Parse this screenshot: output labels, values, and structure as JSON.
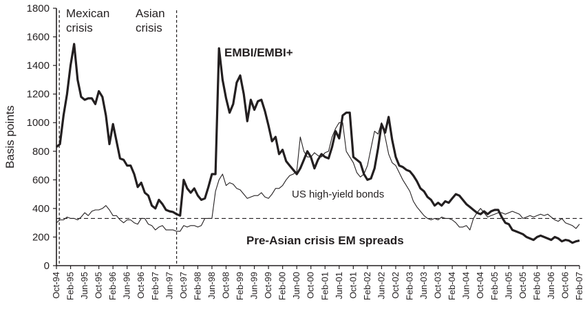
{
  "chart_data": {
    "type": "line",
    "title": "",
    "xlabel": "",
    "ylabel": "Basis points",
    "ylim": [
      0,
      1800
    ],
    "yticks": [
      0,
      200,
      400,
      600,
      800,
      1000,
      1200,
      1400,
      1600,
      1800
    ],
    "grid": false,
    "legend": "inline annotations",
    "x_start": "Oct-94",
    "x_end": "Feb-07",
    "x_tick_interval_months": 4,
    "x_ticks": [
      "Oct-94",
      "Feb-95",
      "Jun-95",
      "Oct-95",
      "Feb-96",
      "Jun-96",
      "Oct-96",
      "Feb-97",
      "Jun-97",
      "Oct-97",
      "Feb-98",
      "Jun-98",
      "Oct-98",
      "Feb-99",
      "Jun-99",
      "Oct-99",
      "Feb-00",
      "Jun-00",
      "Oct-00",
      "Feb-01",
      "Jun-01",
      "Oct-01",
      "Feb-02",
      "Jun-02",
      "Oct-02",
      "Feb-03",
      "Jun-03",
      "Oct-03",
      "Feb-04",
      "Jun-04",
      "Oct-04",
      "Feb-05",
      "Jun-05",
      "Oct-05",
      "Feb-06",
      "Jun-06",
      "Oct-06",
      "Feb-07"
    ],
    "series": [
      {
        "name": "EMBI/EMBI+",
        "style": "thick",
        "color": "#231f20",
        "month_offsets": [
          0,
          1,
          2,
          3,
          4,
          5,
          6,
          7,
          8,
          9,
          10,
          11,
          12,
          13,
          14,
          15,
          16,
          17,
          18,
          19,
          20,
          21,
          22,
          23,
          24,
          25,
          26,
          27,
          28,
          29,
          30,
          31,
          32,
          33,
          34,
          35,
          36,
          37,
          38,
          39,
          40,
          41,
          42,
          43,
          44,
          45,
          46,
          47,
          48,
          49,
          50,
          51,
          52,
          53,
          54,
          55,
          56,
          57,
          58,
          59,
          60,
          61,
          62,
          63,
          64,
          65,
          66,
          67,
          68,
          69,
          70,
          71,
          72,
          73,
          74,
          75,
          76,
          77,
          78,
          79,
          80,
          81,
          82,
          83,
          84,
          85,
          86,
          87,
          88,
          89,
          90,
          91,
          92,
          93,
          94,
          95,
          96,
          97,
          98,
          99,
          100,
          101,
          102,
          103,
          104,
          105,
          106,
          107,
          108,
          109,
          110,
          111,
          112,
          113,
          114,
          115,
          116,
          117,
          118,
          119,
          120,
          121,
          122,
          123,
          124,
          125,
          126,
          127,
          128,
          129,
          130,
          131,
          132,
          133,
          134,
          135,
          136,
          137,
          138,
          139,
          140,
          141,
          142,
          143,
          144,
          145,
          146,
          147,
          148
        ],
        "values": [
          830,
          850,
          1050,
          1200,
          1400,
          1550,
          1300,
          1180,
          1160,
          1170,
          1170,
          1130,
          1220,
          1180,
          1050,
          850,
          990,
          870,
          750,
          740,
          700,
          700,
          640,
          550,
          580,
          510,
          490,
          420,
          400,
          460,
          430,
          390,
          380,
          375,
          360,
          350,
          600,
          540,
          510,
          540,
          490,
          460,
          470,
          550,
          640,
          640,
          1520,
          1300,
          1170,
          1070,
          1130,
          1280,
          1330,
          1200,
          1010,
          1160,
          1090,
          1150,
          1160,
          1080,
          980,
          870,
          900,
          780,
          810,
          730,
          700,
          670,
          640,
          680,
          740,
          800,
          760,
          680,
          740,
          780,
          760,
          750,
          830,
          940,
          890,
          1050,
          1070,
          1070,
          760,
          740,
          720,
          640,
          600,
          610,
          680,
          820,
          990,
          930,
          1040,
          880,
          760,
          700,
          690,
          670,
          660,
          630,
          590,
          540,
          520,
          480,
          460,
          420,
          440,
          420,
          450,
          440,
          470,
          500,
          490,
          460,
          430,
          410,
          390,
          370,
          360,
          380,
          360,
          380,
          390,
          390,
          340,
          300,
          290,
          250,
          240,
          230,
          220,
          200,
          190,
          180,
          200,
          210,
          200,
          190,
          180,
          200,
          190,
          170,
          180,
          175,
          160,
          170,
          175,
          170,
          190
        ]
      },
      {
        "name": "US high-yield bonds",
        "style": "thin",
        "color": "#231f20",
        "month_offsets": [
          0,
          1,
          2,
          3,
          4,
          5,
          6,
          7,
          8,
          9,
          10,
          11,
          12,
          13,
          14,
          15,
          16,
          17,
          18,
          19,
          20,
          21,
          22,
          23,
          24,
          25,
          26,
          27,
          28,
          29,
          30,
          31,
          32,
          33,
          34,
          35,
          36,
          37,
          38,
          39,
          40,
          41,
          42,
          43,
          44,
          45,
          46,
          47,
          48,
          49,
          50,
          51,
          52,
          53,
          54,
          55,
          56,
          57,
          58,
          59,
          60,
          61,
          62,
          63,
          64,
          65,
          66,
          67,
          68,
          69,
          70,
          71,
          72,
          73,
          74,
          75,
          76,
          77,
          78,
          79,
          80,
          81,
          82,
          83,
          84,
          85,
          86,
          87,
          88,
          89,
          90,
          91,
          92,
          93,
          94,
          95,
          96,
          97,
          98,
          99,
          100,
          101,
          102,
          103,
          104,
          105,
          106,
          107,
          108,
          109,
          110,
          111,
          112,
          113,
          114,
          115,
          116,
          117,
          118,
          119,
          120,
          121,
          122,
          123,
          124,
          125,
          126,
          127,
          128,
          129,
          130,
          131,
          132,
          133,
          134,
          135,
          136,
          137,
          138,
          139,
          140,
          141,
          142,
          143,
          144,
          145,
          146,
          147,
          148
        ],
        "values": [
          300,
          320,
          320,
          340,
          330,
          330,
          320,
          340,
          370,
          350,
          380,
          390,
          390,
          400,
          420,
          390,
          350,
          350,
          320,
          300,
          320,
          320,
          300,
          290,
          330,
          330,
          290,
          280,
          250,
          270,
          280,
          250,
          250,
          250,
          240,
          240,
          280,
          270,
          280,
          280,
          270,
          280,
          330,
          330,
          330,
          520,
          600,
          640,
          560,
          580,
          570,
          540,
          530,
          500,
          470,
          480,
          490,
          490,
          510,
          480,
          470,
          500,
          540,
          540,
          560,
          600,
          630,
          640,
          660,
          900,
          800,
          760,
          760,
          790,
          770,
          760,
          790,
          800,
          900,
          960,
          1000,
          1000,
          800,
          760,
          720,
          650,
          620,
          640,
          700,
          820,
          940,
          920,
          1000,
          900,
          780,
          720,
          700,
          650,
          600,
          560,
          520,
          450,
          410,
          380,
          350,
          330,
          320,
          330,
          320,
          340,
          330,
          330,
          320,
          300,
          270,
          270,
          280,
          250,
          330,
          370,
          400,
          370,
          340,
          350,
          360,
          370,
          370,
          360,
          370,
          380,
          370,
          360,
          330,
          340,
          350,
          340,
          350,
          360,
          350,
          360,
          340,
          320,
          310,
          330,
          300,
          290,
          280,
          260,
          290,
          310,
          300,
          300
        ]
      },
      {
        "name": "Pre-Asian crisis EM spreads",
        "style": "dashed-horizontal",
        "color": "#231f20",
        "constant_value": 330
      }
    ],
    "vertical_markers": [
      {
        "label": "Mexican crisis",
        "month_offset": 1,
        "style": "dashed"
      },
      {
        "label": "Asian crisis",
        "month_offset": 34,
        "style": "dashed"
      }
    ],
    "annotations": [
      {
        "text": "Mexican",
        "line": 1,
        "bold": false
      },
      {
        "text": "crisis",
        "line": 2,
        "bold": false
      },
      {
        "text": "Asian",
        "line": 1,
        "bold": false
      },
      {
        "text": "crisis",
        "line": 2,
        "bold": false
      },
      {
        "text": "EMBI/EMBI+",
        "bold": true
      },
      {
        "text": "US high-yield bonds",
        "bold": false
      },
      {
        "text": "Pre-Asian crisis EM spreads",
        "bold": true
      }
    ]
  },
  "labels": {
    "ylabel": "Basis points",
    "mexican_1": "Mexican",
    "mexican_2": "crisis",
    "asian_1": "Asian",
    "asian_2": "crisis",
    "embi": "EMBI/EMBI+",
    "hy": "US high-yield bonds",
    "pre_asian": "Pre-Asian crisis EM spreads"
  }
}
